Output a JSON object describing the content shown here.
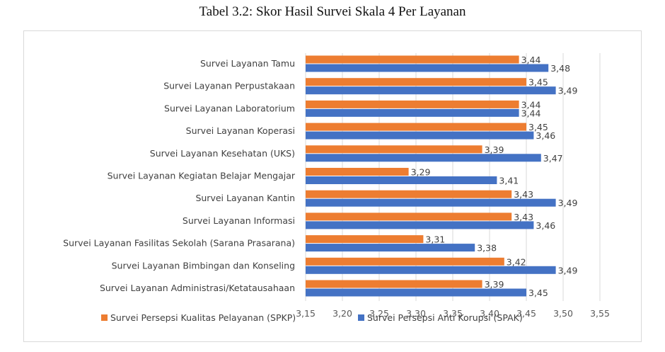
{
  "caption": "Tabel 3.2: Skor Hasil Survei Skala 4 Per Layanan",
  "chart_data": {
    "type": "bar",
    "orientation": "horizontal",
    "categories": [
      "Survei Layanan Tamu",
      "Survei Layanan Perpustakaan",
      "Survei Layanan Laboratorium",
      "Survei Layanan Koperasi",
      "Survei Layanan Kesehatan (UKS)",
      "Survei Layanan Kegiatan Belajar Mengajar",
      "Survei Layanan Kantin",
      "Survei Layanan Informasi",
      "Survei Layanan Fasilitas Sekolah (Sarana Prasarana)",
      "Survei Layanan Bimbingan dan Konseling",
      "Survei Layanan Administrasi/Ketatausahaan"
    ],
    "series": [
      {
        "name": "Survei Persepsi Kualitas Pelayanan (SPKP)",
        "color": "#ED7D31",
        "values": [
          3.44,
          3.45,
          3.44,
          3.45,
          3.39,
          3.29,
          3.43,
          3.43,
          3.31,
          3.42,
          3.39
        ],
        "labels": [
          "3,44",
          "3,45",
          "3,44",
          "3,45",
          "3,39",
          "3,29",
          "3,43",
          "3,43",
          "3,31",
          "3,42",
          "3,39"
        ]
      },
      {
        "name": "Survei Persepsi Anti Korupsi (SPAK)",
        "color": "#4472C4",
        "values": [
          3.48,
          3.49,
          3.44,
          3.46,
          3.47,
          3.41,
          3.49,
          3.46,
          3.38,
          3.49,
          3.45
        ],
        "labels": [
          "3,48",
          "3,49",
          "3,44",
          "3,46",
          "3,47",
          "3,41",
          "3,49",
          "3,46",
          "3,38",
          "3,49",
          "3,45"
        ]
      }
    ],
    "xlim": [
      3.15,
      3.55
    ],
    "xticks": [
      3.15,
      3.2,
      3.25,
      3.3,
      3.35,
      3.4,
      3.45,
      3.5,
      3.55
    ],
    "xtick_labels": [
      "3,15",
      "3,20",
      "3,25",
      "3,30",
      "3,35",
      "3,40",
      "3,45",
      "3,50",
      "3,55"
    ],
    "grid": "vertical",
    "legend_position": "bottom"
  }
}
